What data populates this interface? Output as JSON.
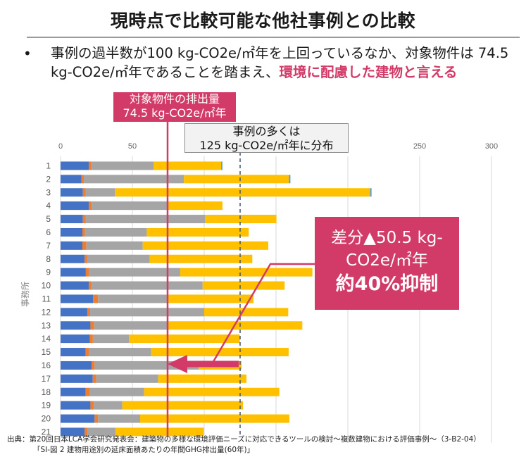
{
  "header": {
    "title": "現時点で比較可能な他社事例との比較",
    "bullet_marker": "•",
    "bullet_text_plain": "事例の過半数が100 kg-CO2e/㎡年を上回っているなか、対象物件は 74.5 kg-CO2e/㎡年であることを踏まえ、",
    "bullet_text_emphasis": "環境に配慮した建物と言える"
  },
  "annotations": {
    "target_label_line1": "対象物件の排出量",
    "target_label_line2": "74.5 kg-CO2e/㎡年",
    "typical_label_line1": "事例の多くは",
    "typical_label_line2": "125 kg-CO2e/㎡年に分布",
    "callout_line1": "差分▲50.5 kg-",
    "callout_line2": "CO2e/㎡年",
    "callout_line3": "約40%抑制"
  },
  "source": {
    "line1": "出典：第20回日本LCA学会研究発表会：建築物の多様な環境評価ニーズに対応できるツールの検討～複数建物における評価事例～（3-B2-04）",
    "line2": "「SI-図 2 建物用途別の延床面積あたりの年間GHG排出量(60年)」"
  },
  "colors": {
    "accent": "#D23A68",
    "series": [
      "#4472C4",
      "#ED7D31",
      "#A5A5A5",
      "#FFC000",
      "#5B9BD5"
    ],
    "dashed_line": "#44546A",
    "grid": "#D9D9D9"
  },
  "chart_data": {
    "type": "bar",
    "orientation": "horizontal",
    "stacked": true,
    "title": "",
    "xlabel": "",
    "ylabel": "事務所",
    "xlim": [
      0,
      300
    ],
    "x_ticks": [
      0,
      50,
      100,
      150,
      200,
      250,
      300
    ],
    "x_tick_labels": [
      "0",
      "50",
      "",
      "",
      "",
      "250",
      "300"
    ],
    "grid": true,
    "categories": [
      "1",
      "2",
      "3",
      "4",
      "5",
      "6",
      "7",
      "8",
      "9",
      "10",
      "11",
      "12",
      "13",
      "14",
      "15",
      "16",
      "17",
      "18",
      "19",
      "20",
      "21"
    ],
    "series": [
      {
        "name": "segment-1",
        "values": [
          19.6,
          14.5,
          15.5,
          19.6,
          15.5,
          15.2,
          15.2,
          16.8,
          17.6,
          19.6,
          22.7,
          18.6,
          20.8,
          20.4,
          17.5,
          21.6,
          22.4,
          17.5,
          20.8,
          23.7,
          16.7
        ]
      },
      {
        "name": "segment-2",
        "values": [
          1.9,
          1.7,
          2.1,
          2.0,
          2.1,
          1.8,
          2.8,
          1.8,
          2.0,
          2.0,
          3.4,
          2.0,
          2.6,
          2.1,
          2.1,
          2.1,
          2.4,
          2.9,
          2.4,
          2.4,
          1.9
        ]
      },
      {
        "name": "segment-3",
        "values": [
          43.2,
          69.7,
          20.3,
          52.6,
          82.9,
          43.0,
          39.2,
          43.5,
          63.7,
          77.3,
          48.6,
          79.4,
          51.3,
          25.2,
          43.5,
          72.5,
          43.2,
          37.8,
          19.8,
          29.3,
          19.6
        ]
      },
      {
        "name": "segment-4",
        "values": [
          47.1,
          73.1,
          177.6,
          38.5,
          49.8,
          71.0,
          87.4,
          71.4,
          92.0,
          57.1,
          59.6,
          58.5,
          93.6,
          77.1,
          95.7,
          29.8,
          61.4,
          94.1,
          84.0,
          103.9,
          61.5
        ]
      },
      {
        "name": "segment-5",
        "values": [
          0.9,
          1.0,
          1.0,
          0,
          0,
          0,
          0,
          0,
          0,
          0,
          0,
          0,
          0,
          0,
          0,
          0,
          0,
          0,
          0,
          0,
          0
        ]
      }
    ],
    "reference_lines": [
      {
        "name": "target-building",
        "value": 74.5,
        "style": "solid",
        "color": "#D23A68"
      },
      {
        "name": "typical-cases",
        "value": 125,
        "style": "dashed",
        "color": "#44546A"
      }
    ],
    "arrow": {
      "from_value": 125,
      "to_value": 74.5,
      "category": "16"
    }
  }
}
